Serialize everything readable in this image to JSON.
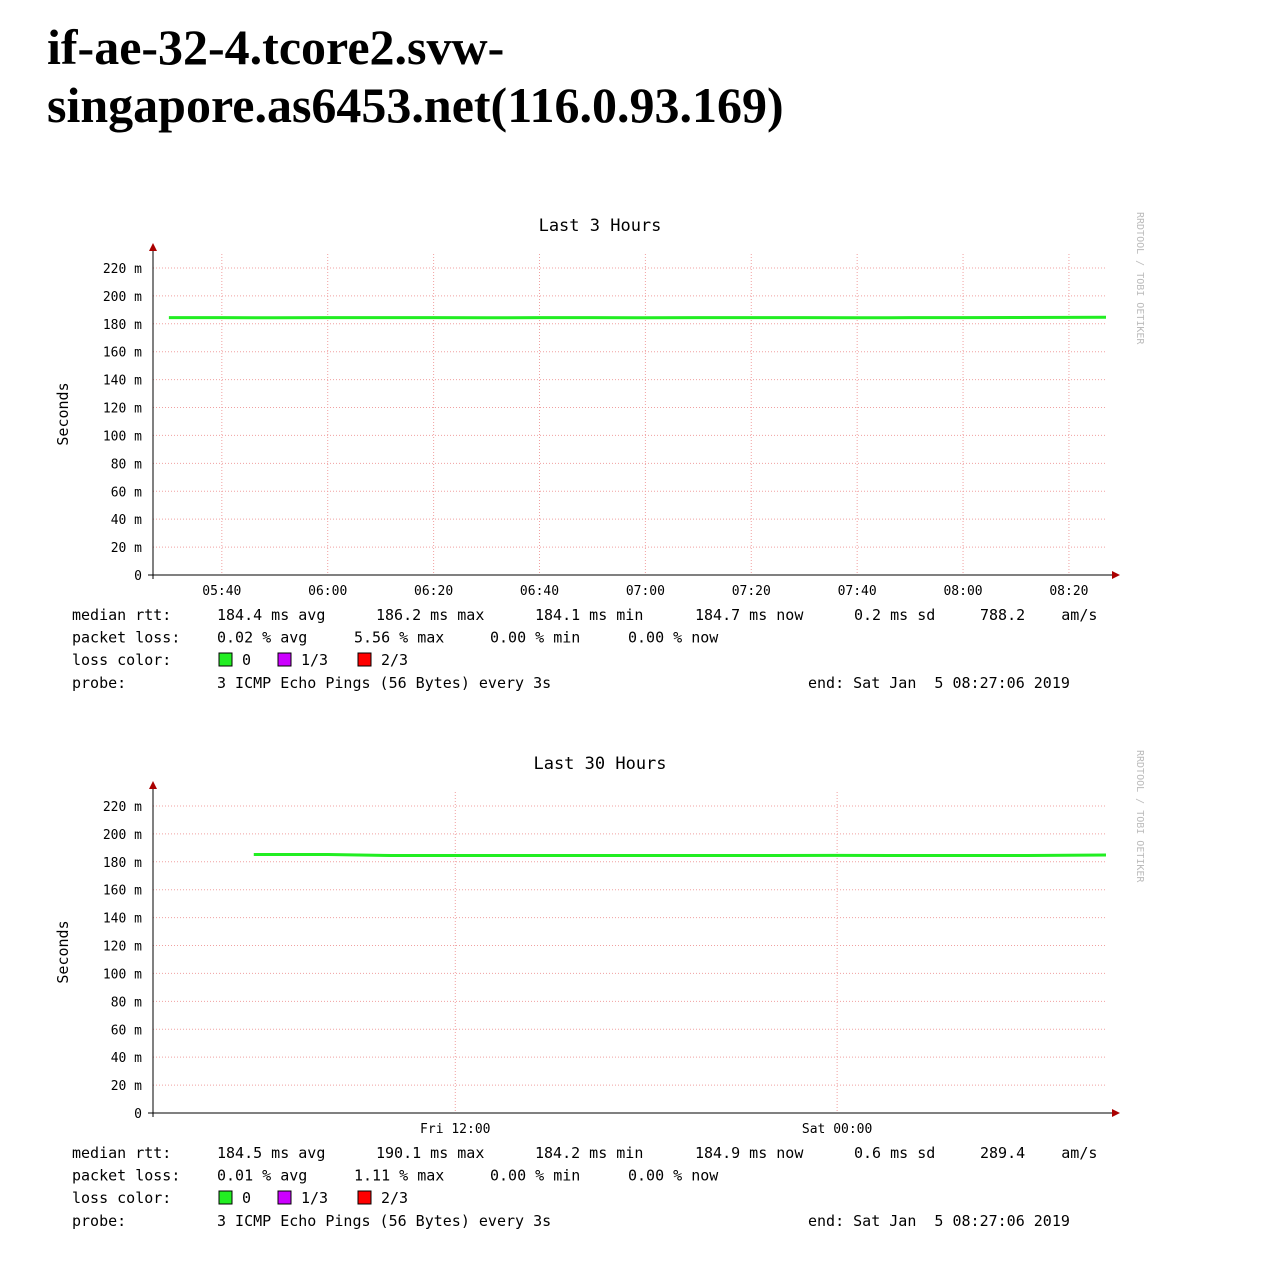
{
  "page_title": "if-ae-32-4.tcore2.svw-singapore.as6453.net(116.0.93.169)",
  "chart_data": [
    {
      "type": "line",
      "title": "Last 3 Hours",
      "y_label": "Seconds",
      "watermark": "RRDTOOL / TOBI OETIKER",
      "xlim": [
        "05:27",
        "08:27"
      ],
      "xticks": [
        "05:40",
        "06:00",
        "06:20",
        "06:40",
        "07:00",
        "07:20",
        "07:40",
        "08:00",
        "08:20"
      ],
      "ylim": [
        0,
        0.23
      ],
      "yticks": [
        0,
        {
          "value": 0.02,
          "label": "20 m"
        },
        {
          "value": 0.04,
          "label": "40 m"
        },
        {
          "value": 0.06,
          "label": "60 m"
        },
        {
          "value": 0.08,
          "label": "80 m"
        },
        {
          "value": 0.1,
          "label": "100 m"
        },
        {
          "value": 0.12,
          "label": "120 m"
        },
        {
          "value": 0.14,
          "label": "140 m"
        },
        {
          "value": 0.16,
          "label": "160 m"
        },
        {
          "value": 0.18,
          "label": "180 m"
        },
        {
          "value": 0.2,
          "label": "200 m"
        },
        {
          "value": 0.22,
          "label": "220 m"
        }
      ],
      "grid": true,
      "x": [
        "05:30",
        "05:40",
        "05:50",
        "06:00",
        "06:10",
        "06:20",
        "06:30",
        "06:40",
        "06:50",
        "07:00",
        "07:10",
        "07:20",
        "07:30",
        "07:40",
        "07:50",
        "08:00",
        "08:10",
        "08:20",
        "08:27"
      ],
      "series": [
        {
          "name": "median rtt",
          "color": "#22ee22",
          "values": [
            0.1844,
            0.1844,
            0.1843,
            0.1844,
            0.1844,
            0.1844,
            0.1843,
            0.1844,
            0.1844,
            0.1843,
            0.1844,
            0.1844,
            0.1844,
            0.1843,
            0.1844,
            0.1844,
            0.1845,
            0.1846,
            0.1847
          ]
        }
      ],
      "stats": [
        {
          "label": "median rtt:",
          "items": [
            "184.4 ms avg",
            "186.2 ms max",
            "184.1 ms min",
            "184.7 ms now",
            "0.2 ms sd",
            "788.2    am/s"
          ]
        },
        {
          "label": "packet loss:",
          "items": [
            "0.02 % avg",
            "5.56 % max",
            "0.00 % min",
            "0.00 % now"
          ]
        }
      ],
      "loss_label": "loss color:",
      "loss_colors": [
        {
          "name": "0",
          "color": "#22ee22"
        },
        {
          "name": "1/3",
          "color": "#cc00ff"
        },
        {
          "name": "2/3",
          "color": "#ff0000"
        }
      ],
      "probe_label": "probe:",
      "probe": "3 ICMP Echo Pings (56 Bytes) every 3s",
      "end": "end: Sat Jan  5 08:27:06 2019"
    },
    {
      "type": "line",
      "title": "Last 30 Hours",
      "y_label": "Seconds",
      "watermark": "RRDTOOL / TOBI OETIKER",
      "xlim": [
        "Fri 02:30",
        "Sat 08:27"
      ],
      "xticks": [
        "Fri 12:00",
        "Sat 00:00"
      ],
      "ylim": [
        0,
        0.23
      ],
      "yticks": [
        0,
        {
          "value": 0.02,
          "label": "20 m"
        },
        {
          "value": 0.04,
          "label": "40 m"
        },
        {
          "value": 0.06,
          "label": "60 m"
        },
        {
          "value": 0.08,
          "label": "80 m"
        },
        {
          "value": 0.1,
          "label": "100 m"
        },
        {
          "value": 0.12,
          "label": "120 m"
        },
        {
          "value": 0.14,
          "label": "140 m"
        },
        {
          "value": 0.16,
          "label": "160 m"
        },
        {
          "value": 0.18,
          "label": "180 m"
        },
        {
          "value": 0.2,
          "label": "200 m"
        },
        {
          "value": 0.22,
          "label": "220 m"
        }
      ],
      "grid": true,
      "x": [
        "Fri 05:40",
        "Fri 08:00",
        "Fri 10:00",
        "Fri 12:00",
        "Fri 14:00",
        "Fri 16:00",
        "Fri 18:00",
        "Fri 20:00",
        "Fri 22:00",
        "Sat 00:00",
        "Sat 02:00",
        "Sat 04:00",
        "Sat 06:00",
        "Sat 08:27"
      ],
      "series": [
        {
          "name": "median rtt",
          "color": "#22ee22",
          "values": [
            0.1852,
            0.1852,
            0.1845,
            0.1845,
            0.1845,
            0.1845,
            0.1845,
            0.1845,
            0.1845,
            0.1846,
            0.1845,
            0.1845,
            0.1845,
            0.1849
          ]
        }
      ],
      "stats": [
        {
          "label": "median rtt:",
          "items": [
            "184.5 ms avg",
            "190.1 ms max",
            "184.2 ms min",
            "184.9 ms now",
            "0.6 ms sd",
            "289.4    am/s"
          ]
        },
        {
          "label": "packet loss:",
          "items": [
            "0.01 % avg",
            "1.11 % max",
            "0.00 % min",
            "0.00 % now"
          ]
        }
      ],
      "loss_label": "loss color:",
      "loss_colors": [
        {
          "name": "0",
          "color": "#22ee22"
        },
        {
          "name": "1/3",
          "color": "#cc00ff"
        },
        {
          "name": "2/3",
          "color": "#ff0000"
        }
      ],
      "probe_label": "probe:",
      "probe": "3 ICMP Echo Pings (56 Bytes) every 3s",
      "end": "end: Sat Jan  5 08:27:06 2019"
    }
  ]
}
